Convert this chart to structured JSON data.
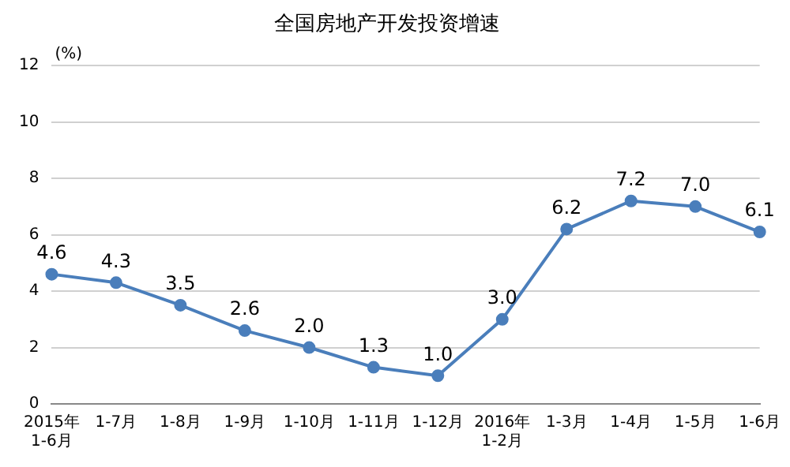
{
  "chart_data": {
    "type": "line",
    "title": "全国房地产开发投资增速",
    "ylabel": "(%)",
    "categories": [
      "2015年\n1-6月",
      "1-7月",
      "1-8月",
      "1-9月",
      "1-10月",
      "1-11月",
      "1-12月",
      "2016年\n1-2月",
      "1-3月",
      "1-4月",
      "1-5月",
      "1-6月"
    ],
    "series": [
      {
        "color": "#4a7ebb",
        "values": [
          4.6,
          4.3,
          3.5,
          2.6,
          2.0,
          1.3,
          1.0,
          3.0,
          6.2,
          7.2,
          7.0,
          6.1
        ],
        "value_labels": [
          "4.6",
          "4.3",
          "3.5",
          "2.6",
          "2.0",
          "1.3",
          "1.0",
          "3.0",
          "6.2",
          "7.2",
          "7.0",
          "6.1"
        ]
      }
    ],
    "ylim": [
      0,
      12
    ],
    "yticks": [
      0,
      2,
      4,
      6,
      8,
      10,
      12
    ],
    "grid": "y",
    "legend": false,
    "marker": "circle",
    "line_style": "solid"
  }
}
